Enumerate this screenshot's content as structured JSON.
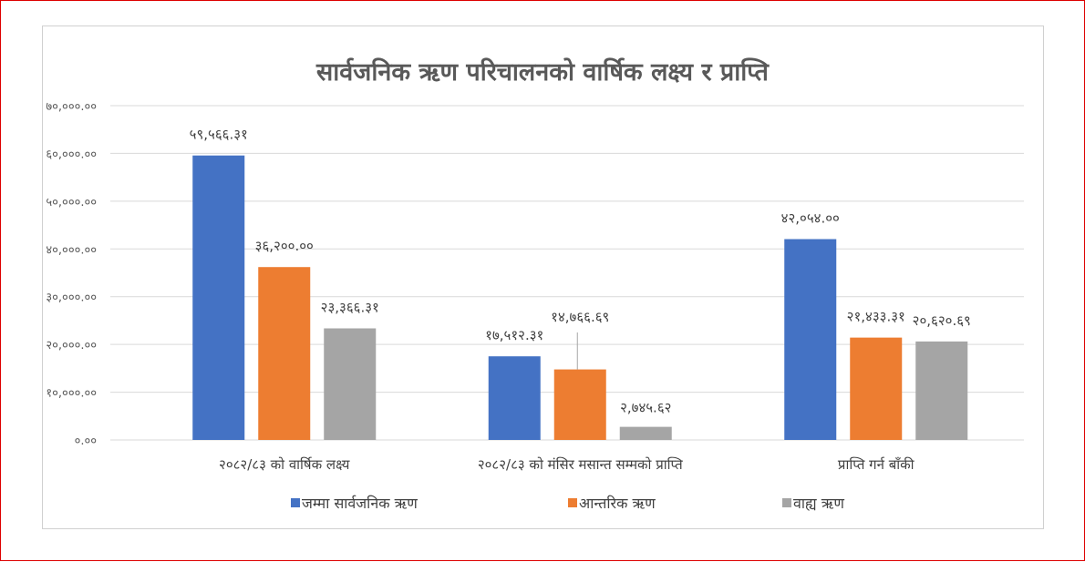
{
  "chart_data": {
    "type": "bar",
    "title": "सार्वजनिक ऋण परिचालनको वार्षिक लक्ष्य र प्राप्ति",
    "categories": [
      "२०८२/८३ को वार्षिक लक्ष्य",
      "२०८२/८३ को मंसिर मसान्त सम्मको प्राप्ति",
      "प्राप्ति गर्न बाँकी"
    ],
    "series": [
      {
        "name": "जम्मा सार्वजनिक ऋण",
        "color": "#4472C4",
        "values": [
          59566.31,
          17512.31,
          42054.0
        ],
        "labels": [
          "५९,५६६.३१",
          "१७,५१२.३१",
          "४२,०५४.००"
        ]
      },
      {
        "name": "आन्तरिक ऋण",
        "color": "#ED7D31",
        "values": [
          36200.0,
          14766.69,
          21433.31
        ],
        "labels": [
          "३६,२००.००",
          "१४,७६६.६९",
          "२१,४३३.३१"
        ]
      },
      {
        "name": "वाह्य ऋण",
        "color": "#A5A5A5",
        "values": [
          23366.31,
          2745.62,
          20620.69
        ],
        "labels": [
          "२३,३६६.३१",
          "२,७४५.६२",
          "२०,६२०.६९"
        ]
      }
    ],
    "ylim": [
      0,
      70000
    ],
    "yticks": [
      0,
      10000,
      20000,
      30000,
      40000,
      50000,
      60000,
      70000
    ],
    "ytick_labels": [
      "०.००",
      "१०,०००.००",
      "२०,०००.००",
      "३०,०००.००",
      "४०,०००.००",
      "५०,०००.००",
      "६०,०००.००",
      "७०,०००.००"
    ],
    "grid": true,
    "legend": "bottom"
  }
}
